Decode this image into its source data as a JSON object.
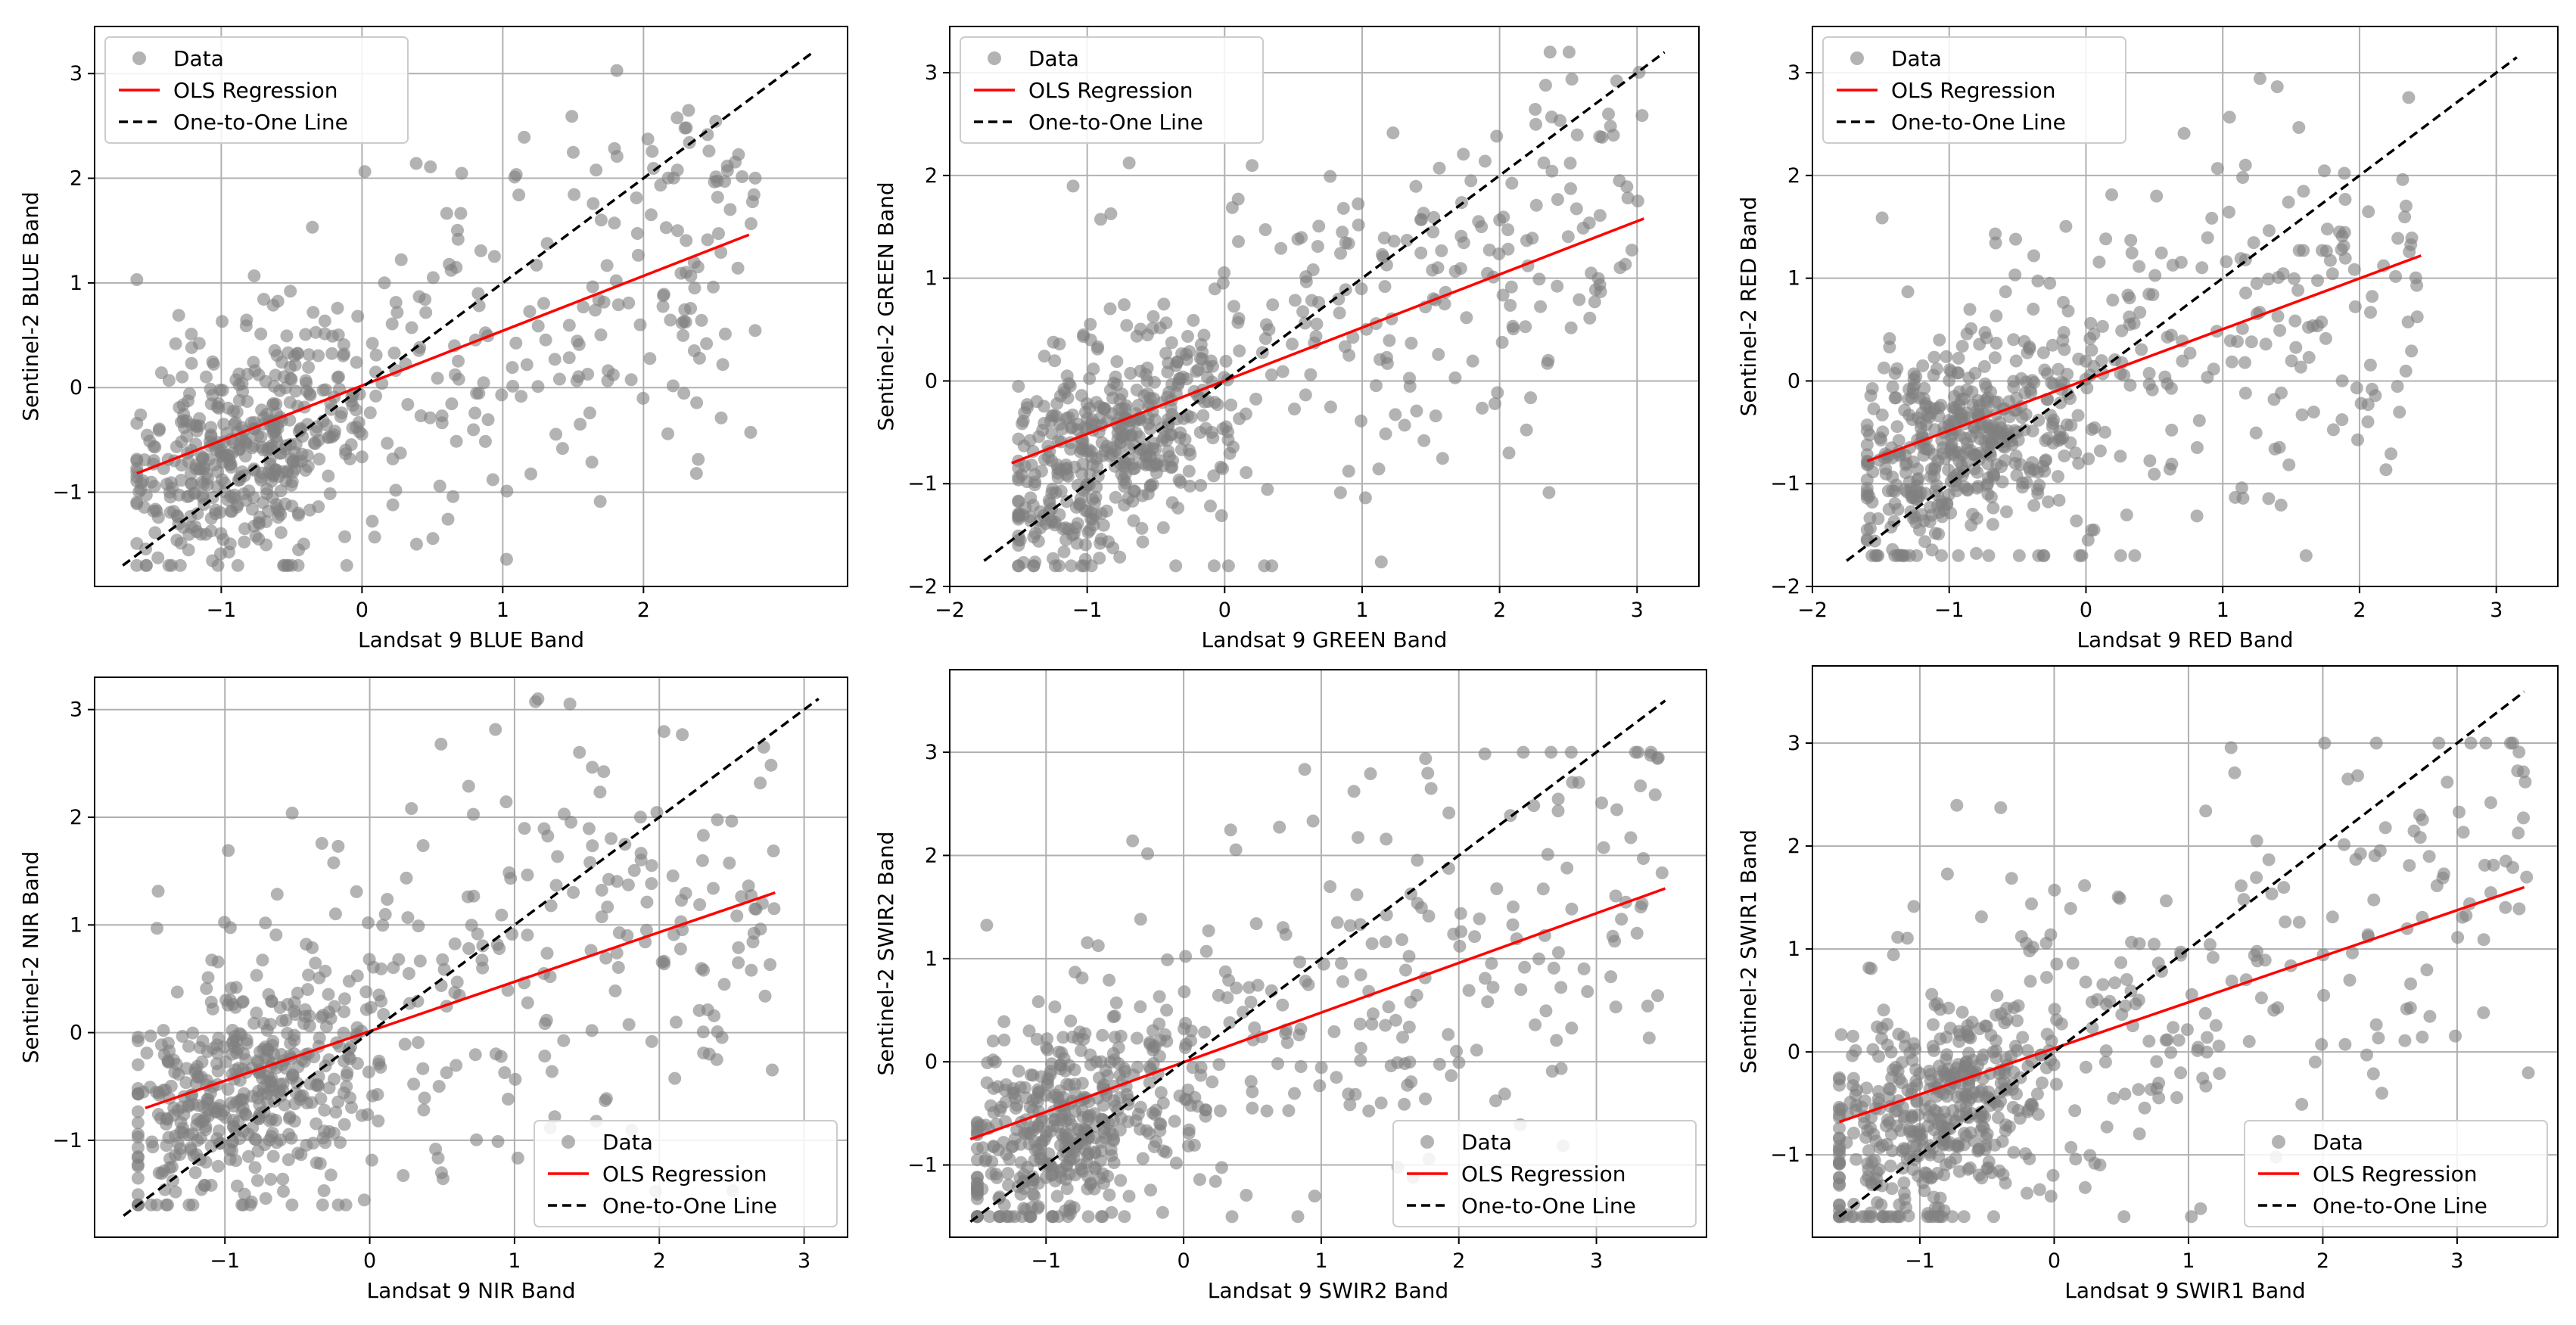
{
  "colors": {
    "data_points": "#808080",
    "ols_line": "#ff0000",
    "one_to_one_line": "#000000",
    "grid": "#b0b0b0"
  },
  "chart_data": [
    {
      "type": "scatter",
      "xlabel": "Landsat 9 BLUE Band",
      "ylabel": "Sentinel-2 BLUE Band",
      "xlim": [
        -1.9,
        3.45
      ],
      "ylim": [
        -1.9,
        3.45
      ],
      "xticks": [
        -1,
        0,
        1,
        2
      ],
      "yticks": [
        -1,
        0,
        1,
        2,
        3
      ],
      "grid": true,
      "legend": {
        "position": "upper-left",
        "entries": [
          "Data",
          "OLS Regression",
          "One-to-One Line"
        ]
      },
      "series": [
        {
          "name": "Data",
          "kind": "points",
          "n": 650,
          "x_range": [
            -1.6,
            2.8
          ],
          "y_range": [
            -1.7,
            3.2
          ],
          "cluster_center": [
            -0.8,
            -0.6
          ],
          "corr": 0.55,
          "seed": 11
        },
        {
          "name": "OLS Regression",
          "kind": "line",
          "points": [
            [
              -1.6,
              -0.82
            ],
            [
              2.75,
              1.46
            ]
          ]
        },
        {
          "name": "One-to-One Line",
          "kind": "dashed-line",
          "points": [
            [
              -1.7,
              -1.7
            ],
            [
              3.2,
              3.2
            ]
          ]
        }
      ]
    },
    {
      "type": "scatter",
      "xlabel": "Landsat 9 GREEN Band",
      "ylabel": "Sentinel-2 GREEN Band",
      "xlim": [
        -2.0,
        3.45
      ],
      "ylim": [
        -2.0,
        3.45
      ],
      "xticks": [
        -2,
        -1,
        0,
        1,
        2,
        3
      ],
      "yticks": [
        -2,
        -1,
        0,
        1,
        2,
        3
      ],
      "grid": true,
      "legend": {
        "position": "upper-left",
        "entries": [
          "Data",
          "OLS Regression",
          "One-to-One Line"
        ]
      },
      "series": [
        {
          "name": "Data",
          "kind": "points",
          "n": 650,
          "x_range": [
            -1.5,
            3.05
          ],
          "y_range": [
            -1.8,
            3.2
          ],
          "cluster_center": [
            -0.8,
            -0.6
          ],
          "corr": 0.55,
          "seed": 23
        },
        {
          "name": "OLS Regression",
          "kind": "line",
          "points": [
            [
              -1.55,
              -0.8
            ],
            [
              3.05,
              1.58
            ]
          ]
        },
        {
          "name": "One-to-One Line",
          "kind": "dashed-line",
          "points": [
            [
              -1.75,
              -1.75
            ],
            [
              3.2,
              3.2
            ]
          ]
        }
      ]
    },
    {
      "type": "scatter",
      "xlabel": "Landsat 9 RED Band",
      "ylabel": "Sentinel-2 RED Band",
      "xlim": [
        -2.0,
        3.45
      ],
      "ylim": [
        -2.0,
        3.45
      ],
      "xticks": [
        -2,
        -1,
        0,
        1,
        2,
        3
      ],
      "yticks": [
        -2,
        -1,
        0,
        1,
        2,
        3
      ],
      "grid": true,
      "legend": {
        "position": "upper-left",
        "entries": [
          "Data",
          "OLS Regression",
          "One-to-One Line"
        ]
      },
      "series": [
        {
          "name": "Data",
          "kind": "points",
          "n": 650,
          "x_range": [
            -1.6,
            2.45
          ],
          "y_range": [
            -1.7,
            3.2
          ],
          "cluster_center": [
            -0.9,
            -0.6
          ],
          "corr": 0.5,
          "seed": 37
        },
        {
          "name": "OLS Regression",
          "kind": "line",
          "points": [
            [
              -1.6,
              -0.78
            ],
            [
              2.45,
              1.22
            ]
          ]
        },
        {
          "name": "One-to-One Line",
          "kind": "dashed-line",
          "points": [
            [
              -1.75,
              -1.75
            ],
            [
              3.15,
              3.15
            ]
          ]
        }
      ]
    },
    {
      "type": "scatter",
      "xlabel": "Landsat 9 NIR Band",
      "ylabel": "Sentinel-2 NIR Band",
      "xlim": [
        -1.9,
        3.3
      ],
      "ylim": [
        -1.9,
        3.3
      ],
      "xticks": [
        -1,
        0,
        1,
        2,
        3
      ],
      "yticks": [
        -1,
        0,
        1,
        2,
        3
      ],
      "grid": true,
      "legend": {
        "position": "lower-right",
        "entries": [
          "Data",
          "OLS Regression",
          "One-to-One Line"
        ]
      },
      "series": [
        {
          "name": "Data",
          "kind": "points",
          "n": 650,
          "x_range": [
            -1.6,
            2.85
          ],
          "y_range": [
            -1.6,
            3.1
          ],
          "cluster_center": [
            -0.9,
            -0.5
          ],
          "corr": 0.5,
          "seed": 41
        },
        {
          "name": "OLS Regression",
          "kind": "line",
          "points": [
            [
              -1.55,
              -0.7
            ],
            [
              2.8,
              1.3
            ]
          ]
        },
        {
          "name": "One-to-One Line",
          "kind": "dashed-line",
          "points": [
            [
              -1.7,
              -1.7
            ],
            [
              3.1,
              3.1
            ]
          ]
        }
      ]
    },
    {
      "type": "scatter",
      "xlabel": "Landsat 9 SWIR2 Band",
      "ylabel": "Sentinel-2 SWIR2 Band",
      "xlim": [
        -1.7,
        3.8
      ],
      "ylim": [
        -1.7,
        3.8
      ],
      "xticks": [
        -1,
        0,
        1,
        2,
        3
      ],
      "yticks": [
        -1,
        0,
        1,
        2,
        3
      ],
      "grid": true,
      "legend": {
        "position": "lower-right",
        "entries": [
          "Data",
          "OLS Regression",
          "One-to-One Line"
        ]
      },
      "series": [
        {
          "name": "Data",
          "kind": "points",
          "n": 650,
          "x_range": [
            -1.5,
            3.5
          ],
          "y_range": [
            -1.5,
            3.0
          ],
          "cluster_center": [
            -0.8,
            -0.6
          ],
          "corr": 0.5,
          "seed": 53
        },
        {
          "name": "OLS Regression",
          "kind": "line",
          "points": [
            [
              -1.55,
              -0.75
            ],
            [
              3.5,
              1.68
            ]
          ]
        },
        {
          "name": "One-to-One Line",
          "kind": "dashed-line",
          "points": [
            [
              -1.55,
              -1.55
            ],
            [
              3.5,
              3.5
            ]
          ]
        }
      ]
    },
    {
      "type": "scatter",
      "xlabel": "Landsat 9 SWIR1 Band",
      "ylabel": "Sentinel-2 SWIR1 Band",
      "xlim": [
        -1.8,
        3.75
      ],
      "ylim": [
        -1.8,
        3.75
      ],
      "xticks": [
        -1,
        0,
        1,
        2,
        3
      ],
      "yticks": [
        -1,
        0,
        1,
        2,
        3
      ],
      "grid": true,
      "legend": {
        "position": "lower-right",
        "entries": [
          "Data",
          "OLS Regression",
          "One-to-One Line"
        ]
      },
      "series": [
        {
          "name": "Data",
          "kind": "points",
          "n": 650,
          "x_range": [
            -1.6,
            3.55
          ],
          "y_range": [
            -1.6,
            3.0
          ],
          "cluster_center": [
            -0.9,
            -0.6
          ],
          "corr": 0.5,
          "seed": 67
        },
        {
          "name": "OLS Regression",
          "kind": "line",
          "points": [
            [
              -1.6,
              -0.68
            ],
            [
              3.5,
              1.6
            ]
          ]
        },
        {
          "name": "One-to-One Line",
          "kind": "dashed-line",
          "points": [
            [
              -1.6,
              -1.6
            ],
            [
              3.5,
              3.5
            ]
          ]
        }
      ]
    }
  ]
}
